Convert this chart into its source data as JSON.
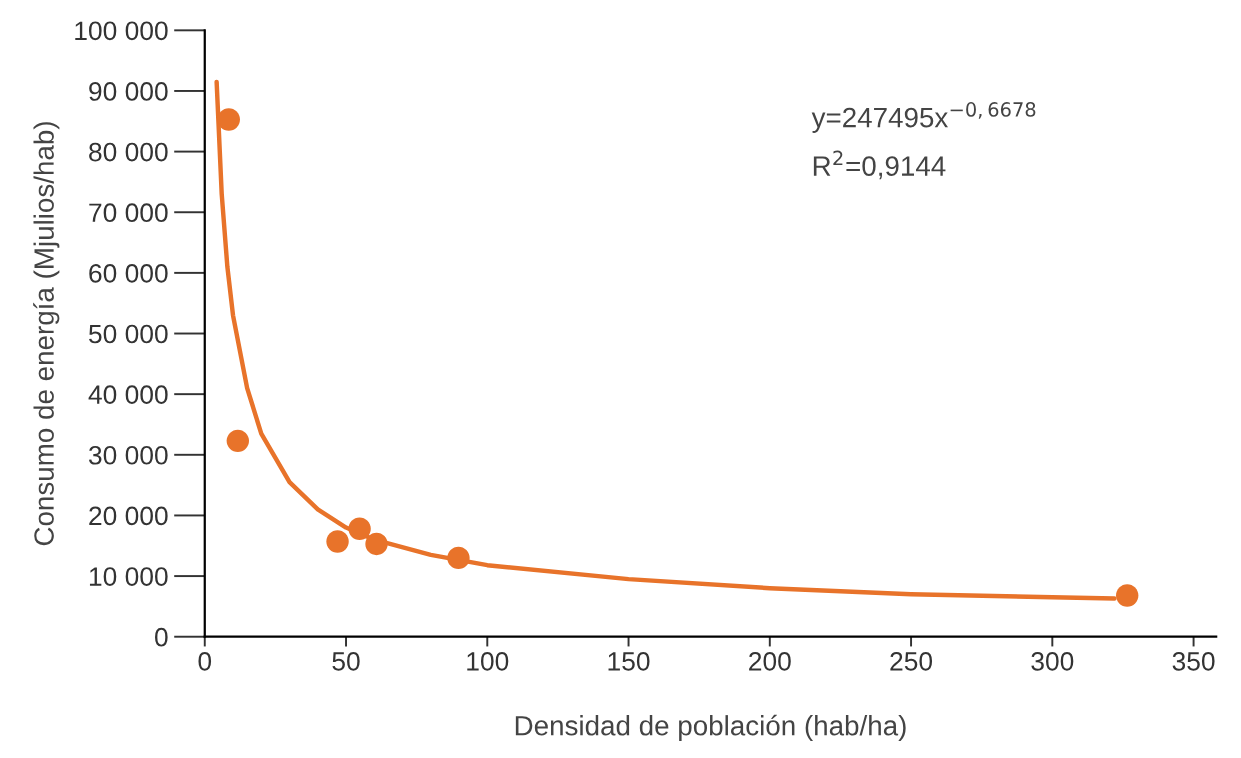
{
  "chart_data": {
    "type": "scatter",
    "xlabel": "Densidad de población (hab/ha)",
    "ylabel": "Consumo de energía (Mjulios/hab)",
    "xlim": [
      0,
      358
    ],
    "ylim": [
      0,
      100000
    ],
    "xticks": [
      0,
      50,
      100,
      150,
      200,
      250,
      300,
      350
    ],
    "yticks": [
      {
        "value": 0,
        "label": "0"
      },
      {
        "value": 10000,
        "label": "10 000"
      },
      {
        "value": 20000,
        "label": "20 000"
      },
      {
        "value": 30000,
        "label": "30 000"
      },
      {
        "value": 40000,
        "label": "40 000"
      },
      {
        "value": 50000,
        "label": "50 000"
      },
      {
        "value": 60000,
        "label": "60 000"
      },
      {
        "value": 70000,
        "label": "70 000"
      },
      {
        "value": 80000,
        "label": "80 000"
      },
      {
        "value": 90000,
        "label": "90 000"
      },
      {
        "value": 100000,
        "label": "100 000"
      }
    ],
    "grid": false,
    "marker": "circle",
    "series": [
      {
        "color": "#e8732a",
        "x": [
          8.5,
          11.7,
          47,
          54.8,
          60.8,
          89.8,
          326.5
        ],
        "values": [
          85300,
          32300,
          15700,
          17800,
          15300,
          13000,
          6800
        ]
      },
      {
        "type": "line",
        "color": "#e8732a",
        "marker": "none",
        "x": [
          4.2,
          6,
          8,
          10,
          15,
          20,
          30,
          40,
          50,
          60,
          80,
          100,
          150,
          200,
          250,
          300,
          322
        ],
        "values": [
          91500,
          73000,
          61000,
          53000,
          41000,
          33500,
          25500,
          21000,
          18000,
          16000,
          13500,
          11800,
          9500,
          8000,
          7000,
          6500,
          6300
        ]
      }
    ],
    "annotations": [
      {
        "text": "y=247495x$^{−0,6678}$"
      },
      {
        "text": "R$^{2}$=0,9144"
      }
    ]
  }
}
